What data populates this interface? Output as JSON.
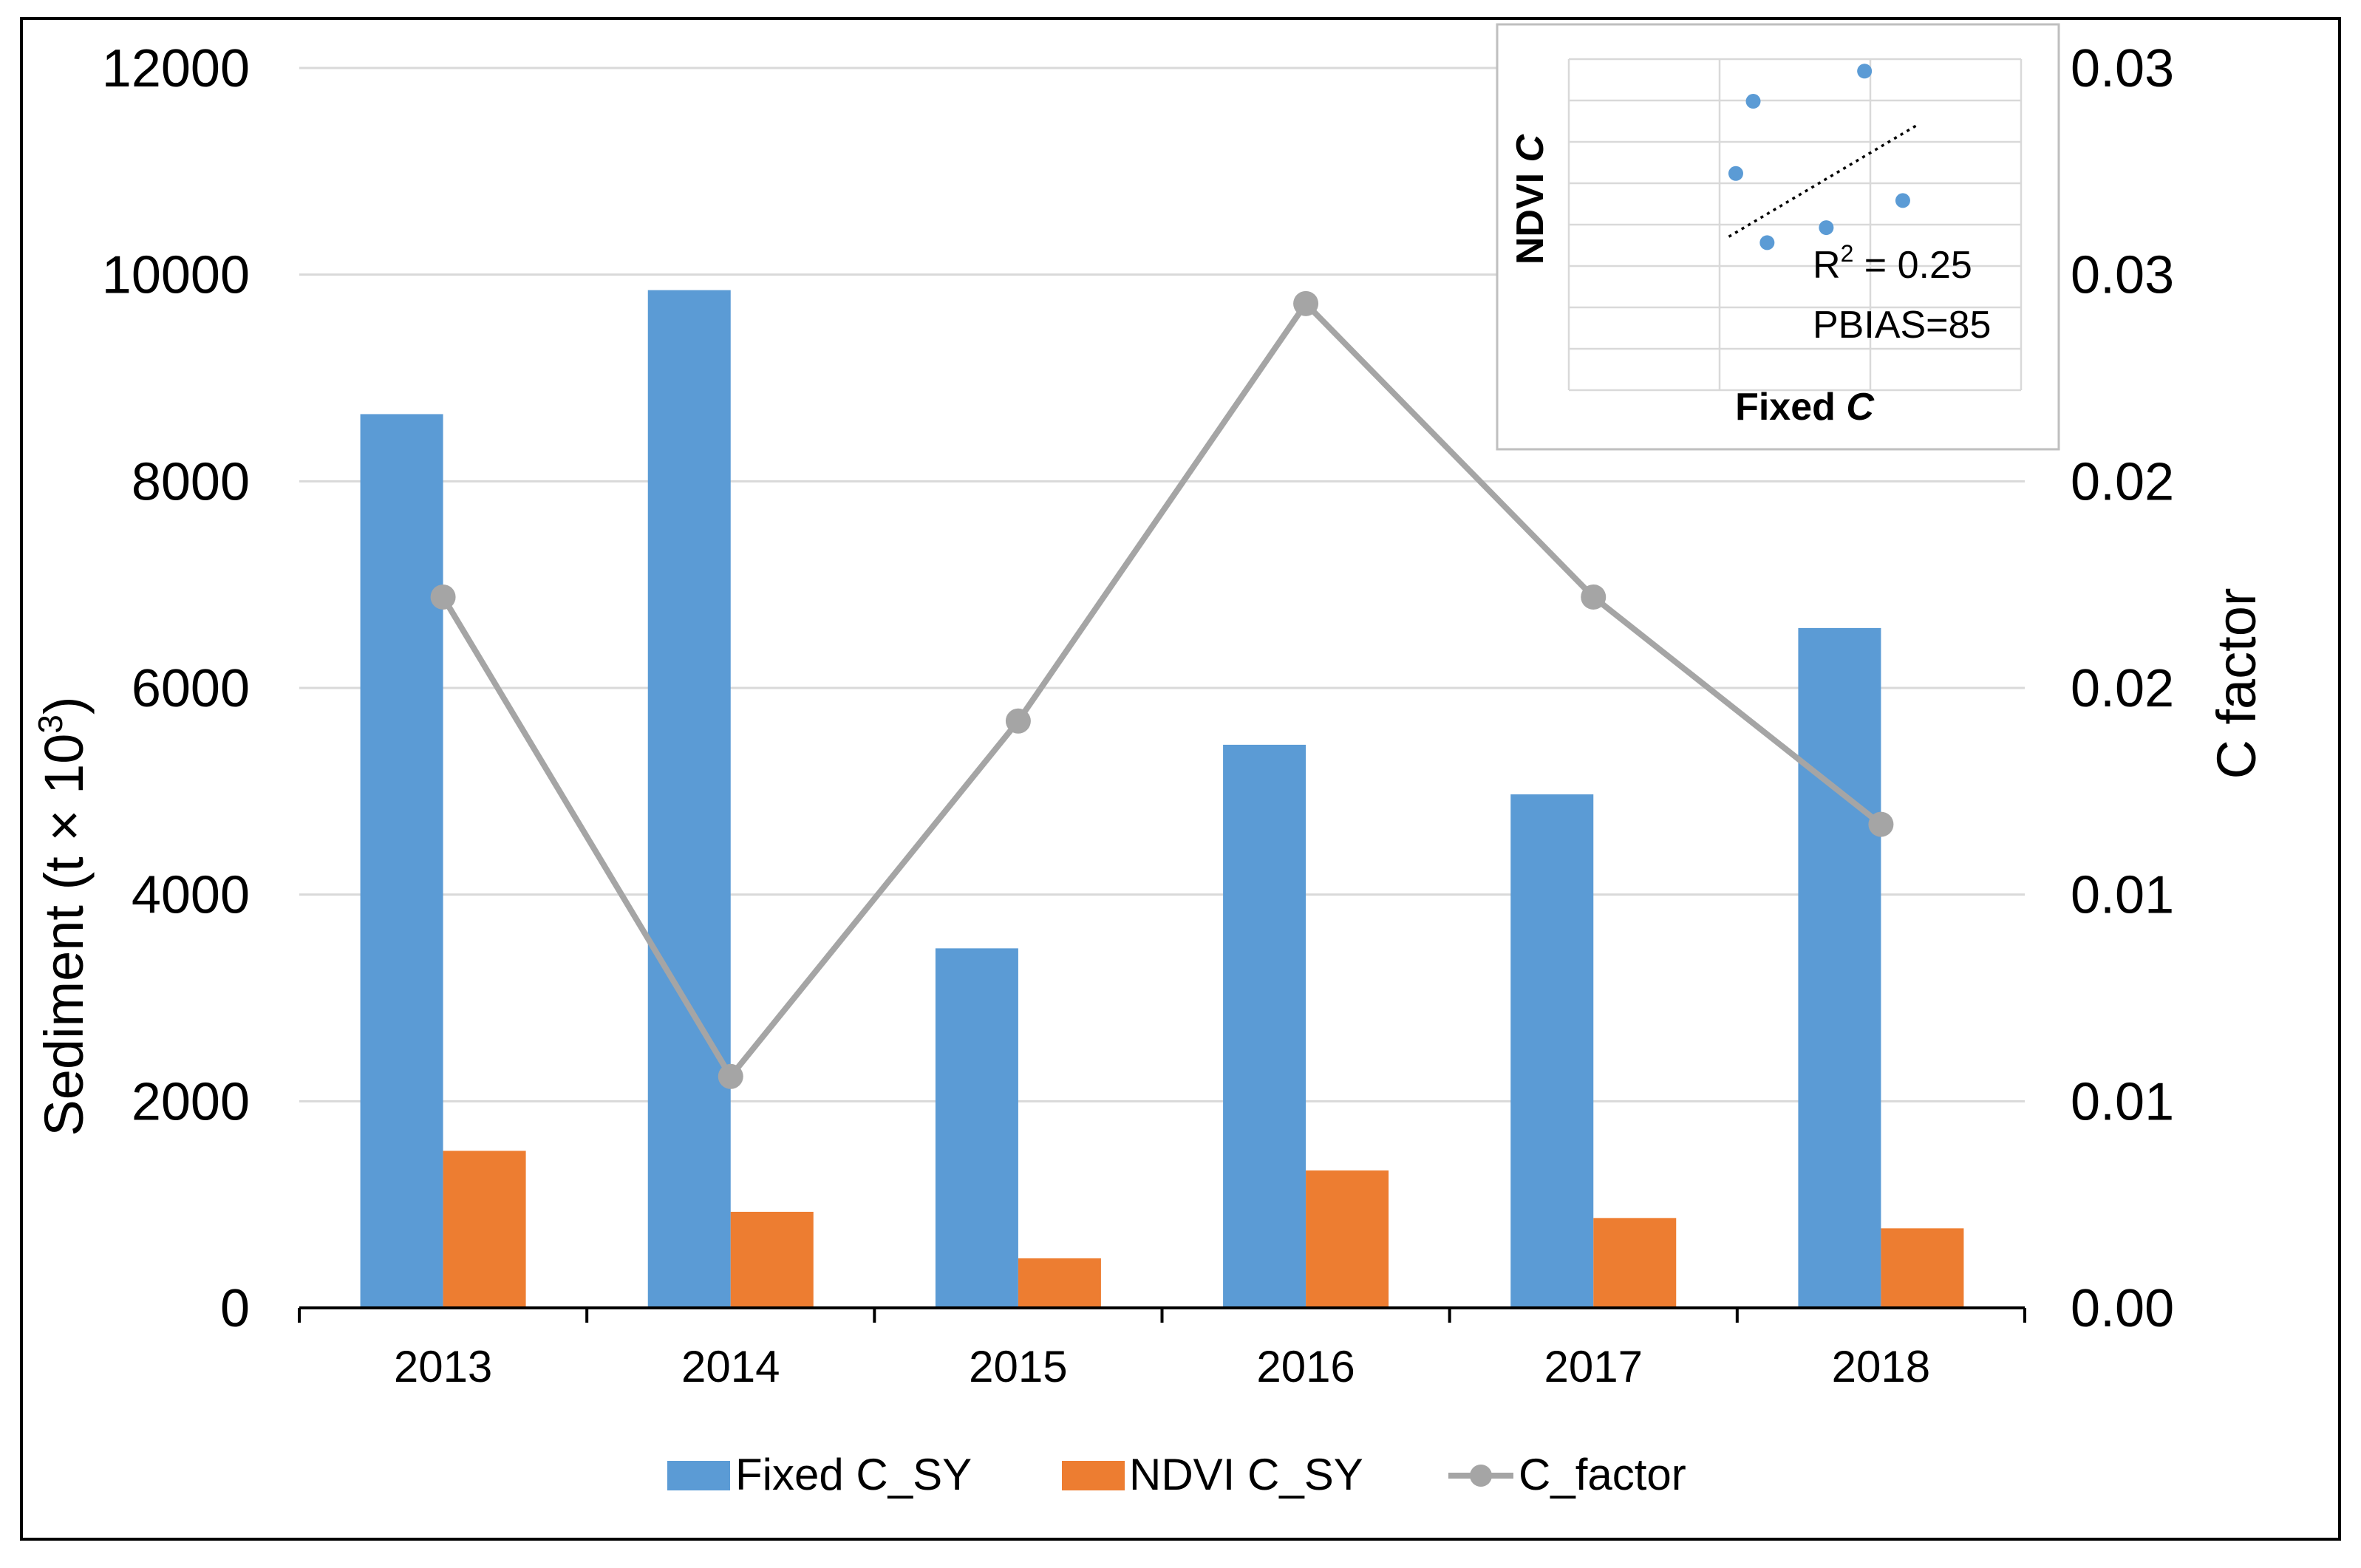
{
  "chart_data": {
    "type": "bar",
    "categories": [
      "2013",
      "2014",
      "2015",
      "2016",
      "2017",
      "2018"
    ],
    "series": [
      {
        "name": "Fixed C_SY",
        "type": "bar",
        "axis": "left",
        "color": "#5B9BD5",
        "values": [
          8650,
          9850,
          3480,
          5450,
          4970,
          6580
        ]
      },
      {
        "name": "NDVI C_SY",
        "type": "bar",
        "axis": "left",
        "color": "#ED7D31",
        "values": [
          1520,
          930,
          480,
          1330,
          870,
          770
        ]
      },
      {
        "name": "C_factor",
        "type": "line",
        "axis": "right",
        "color": "#A5A5A5",
        "values": [
          0.0172,
          0.0056,
          0.0142,
          0.0243,
          0.0172,
          0.0117
        ]
      }
    ],
    "ylabel": "Sediment (t × 10",
    "ylabel_sup": "3",
    "ylabel_close": ")",
    "y2label": "C factor",
    "ylim": [
      0,
      12000
    ],
    "y2lim": [
      0,
      0.03
    ],
    "yticks": [
      "0",
      "2000",
      "4000",
      "6000",
      "8000",
      "10000",
      "12000"
    ],
    "y2ticks": [
      "0.00",
      "0.01",
      "0.01",
      "0.02",
      "0.02",
      "0.03",
      "0.03"
    ],
    "grid": true,
    "legend_position": "bottom",
    "inset": {
      "type": "scatter",
      "xlabel": "Fixed",
      "xlabel_italic": "C",
      "ylabel": "NDVI",
      "ylabel_italic": "C",
      "r2_prefix": "R",
      "r2_sup": "2",
      "r2_value": " = 0.25",
      "pbias": "PBIAS=85",
      "points": [
        [
          0.48,
          0.72
        ],
        [
          0.57,
          0.49
        ],
        [
          0.53,
          0.96
        ],
        [
          0.74,
          0.54
        ],
        [
          0.85,
          1.06
        ],
        [
          0.96,
          0.63
        ]
      ],
      "trend": [
        [
          0.46,
          0.51
        ],
        [
          1.0,
          0.88
        ]
      ],
      "xlim": [
        0,
        1.3
      ],
      "ylim": [
        0,
        1.1
      ]
    }
  }
}
